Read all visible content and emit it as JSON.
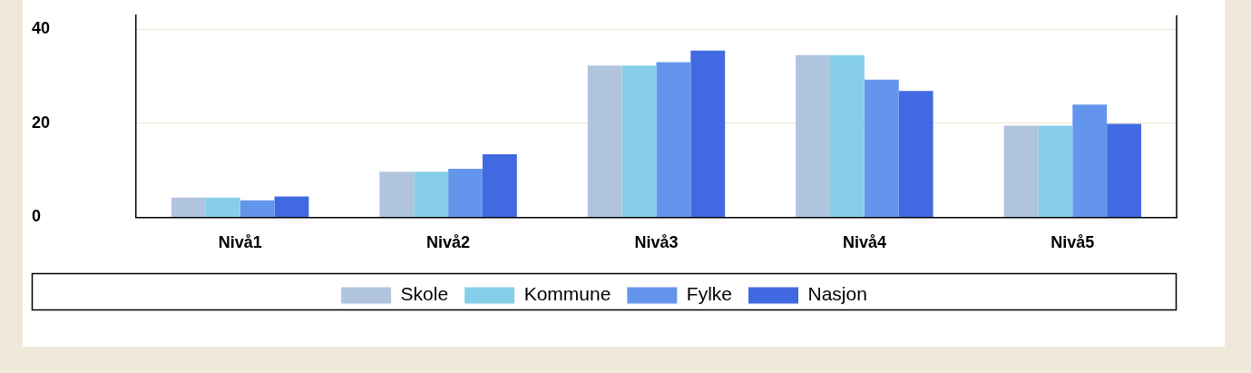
{
  "chart_data": {
    "type": "bar",
    "categories": [
      "Nivå1",
      "Nivå2",
      "Nivå3",
      "Nivå4",
      "Nivå5"
    ],
    "series": [
      {
        "name": "Skole",
        "color": "#b0c4de",
        "values": [
          4.2,
          9.7,
          32.3,
          34.5,
          19.5
        ]
      },
      {
        "name": "Kommune",
        "color": "#87ceeb",
        "values": [
          4.2,
          9.7,
          32.3,
          34.5,
          19.5
        ]
      },
      {
        "name": "Fylke",
        "color": "#6495ed",
        "values": [
          3.6,
          10.3,
          33.0,
          29.3,
          24.0
        ]
      },
      {
        "name": "Nasjon",
        "color": "#4169e1",
        "values": [
          4.4,
          13.4,
          35.5,
          26.9,
          19.9
        ]
      }
    ],
    "ylim": [
      0,
      43
    ],
    "yticks": [
      0,
      20,
      40
    ],
    "grid": true,
    "legend": "bottom"
  }
}
